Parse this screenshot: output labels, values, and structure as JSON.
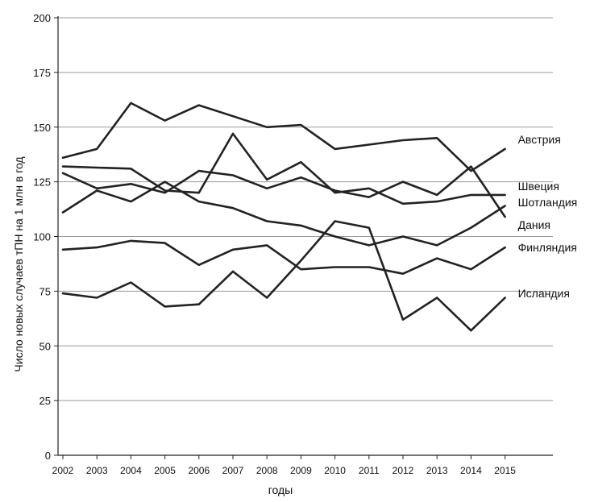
{
  "chart_data": {
    "type": "line",
    "xlabel": "годы",
    "ylabel": "Число новых случаев тПН на 1 млн в год",
    "x": [
      2002,
      2003,
      2004,
      2005,
      2006,
      2007,
      2008,
      2009,
      2010,
      2011,
      2012,
      2013,
      2014,
      2015
    ],
    "yticks": [
      0,
      25,
      50,
      75,
      100,
      125,
      150,
      175,
      200
    ],
    "ylim": [
      0,
      200
    ],
    "xlim": [
      2002,
      2017
    ],
    "grid": "horizontal",
    "legend": "right, labels at line ends",
    "series": [
      {
        "name": "Австрия",
        "values": [
          136,
          140,
          161,
          153,
          160,
          155,
          150,
          151,
          140,
          142,
          144,
          145,
          130,
          140
        ]
      },
      {
        "name": "Швеция",
        "values": [
          132,
          131.5,
          131,
          121,
          120,
          147,
          126,
          134,
          120,
          122,
          115,
          116,
          119,
          119
        ]
      },
      {
        "name": "Шотландия",
        "values": [
          111,
          121,
          116,
          125,
          116,
          113,
          107,
          105,
          100,
          96,
          100,
          96,
          104,
          114
        ]
      },
      {
        "name": "Дания",
        "values": [
          129,
          122,
          124,
          120,
          130,
          128,
          122,
          127,
          121,
          118,
          125,
          119,
          132,
          109
        ]
      },
      {
        "name": "Финляндия",
        "values": [
          94,
          95,
          98,
          97,
          87,
          94,
          96,
          85,
          86,
          86,
          83,
          90,
          85,
          95
        ]
      },
      {
        "name": "Исландия",
        "values": [
          74,
          72,
          79,
          68,
          69,
          84,
          72,
          89,
          107,
          104,
          62,
          72,
          57,
          72
        ]
      }
    ]
  }
}
